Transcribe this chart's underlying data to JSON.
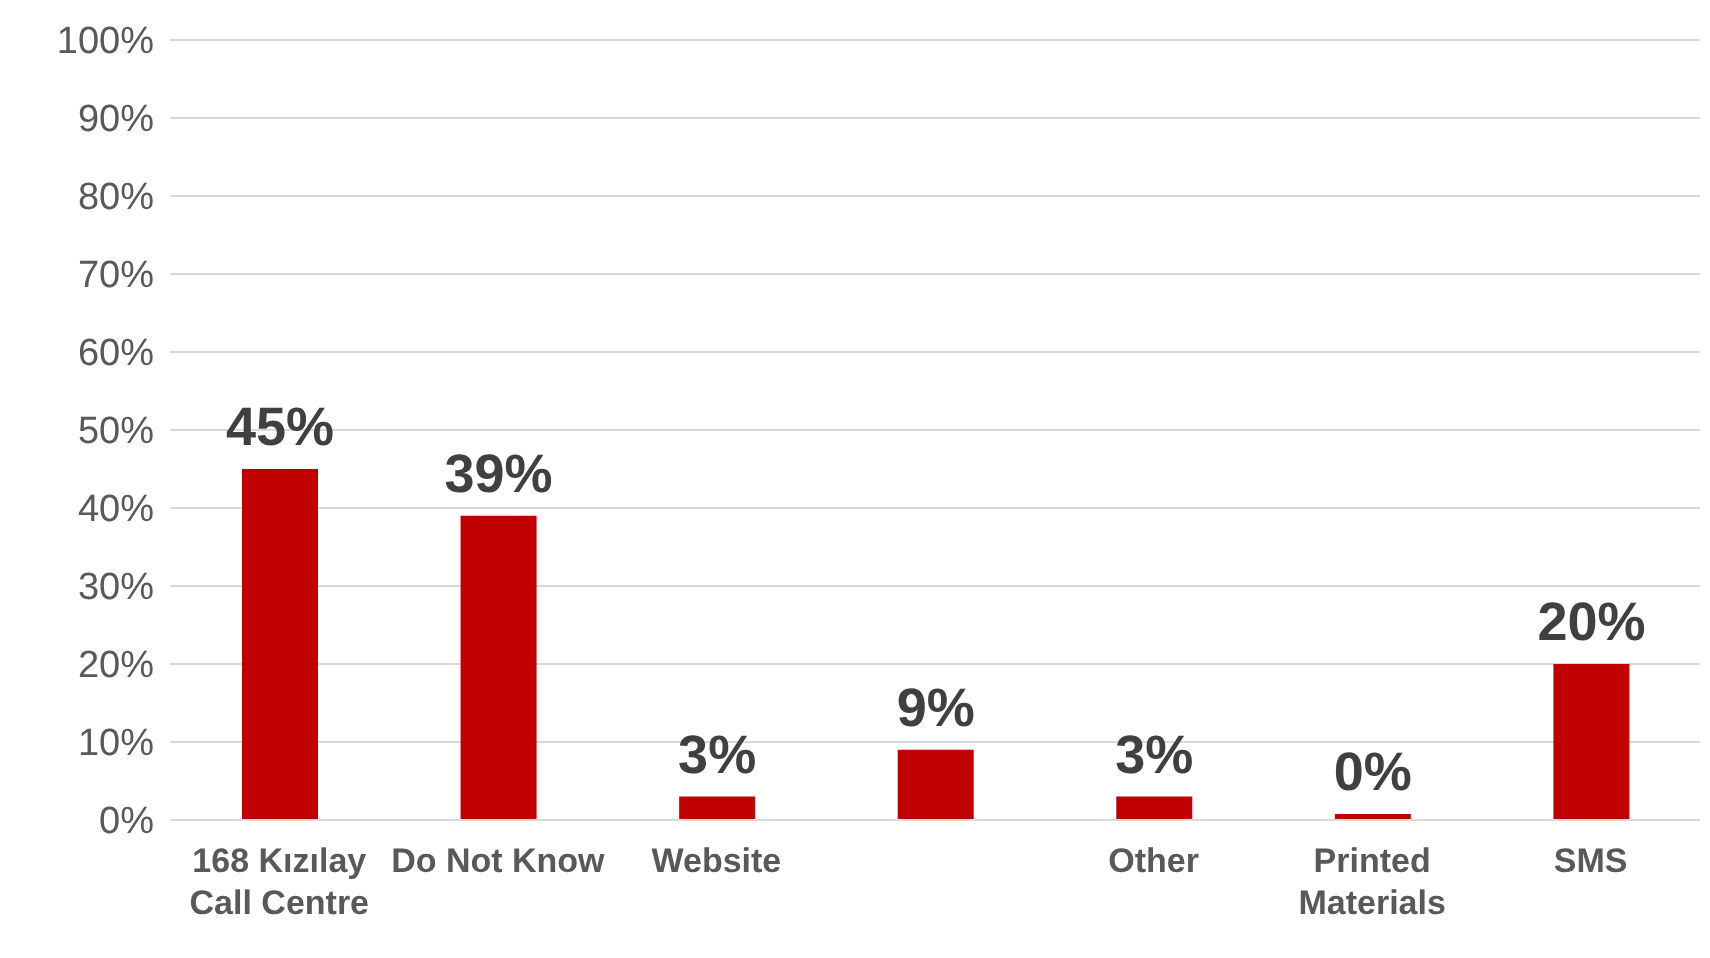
{
  "chart_data": {
    "type": "bar",
    "categories": [
      "168 Kızılay Call Centre",
      "Do Not Know",
      "Website",
      null,
      "Other",
      "Printed Materials",
      "SMS"
    ],
    "values": [
      45,
      39,
      3,
      9,
      3,
      0,
      20
    ],
    "color": "#c00000",
    "data_labels": true,
    "value_labels": [
      "45%",
      "39%",
      "3%",
      "9%",
      "3%",
      "0%",
      "20%"
    ],
    "ylim": [
      0,
      100
    ],
    "yticks": [
      {
        "value": 0,
        "label": "0%"
      },
      {
        "value": 10,
        "label": "10%"
      },
      {
        "value": 20,
        "label": "20%"
      },
      {
        "value": 30,
        "label": "30%"
      },
      {
        "value": 40,
        "label": "40%"
      },
      {
        "value": 50,
        "label": "50%"
      },
      {
        "value": 60,
        "label": "60%"
      },
      {
        "value": 70,
        "label": "70%"
      },
      {
        "value": 80,
        "label": "80%"
      },
      {
        "value": 90,
        "label": "90%"
      },
      {
        "value": 100,
        "label": "100%"
      }
    ],
    "grid": "y",
    "legend": false
  }
}
